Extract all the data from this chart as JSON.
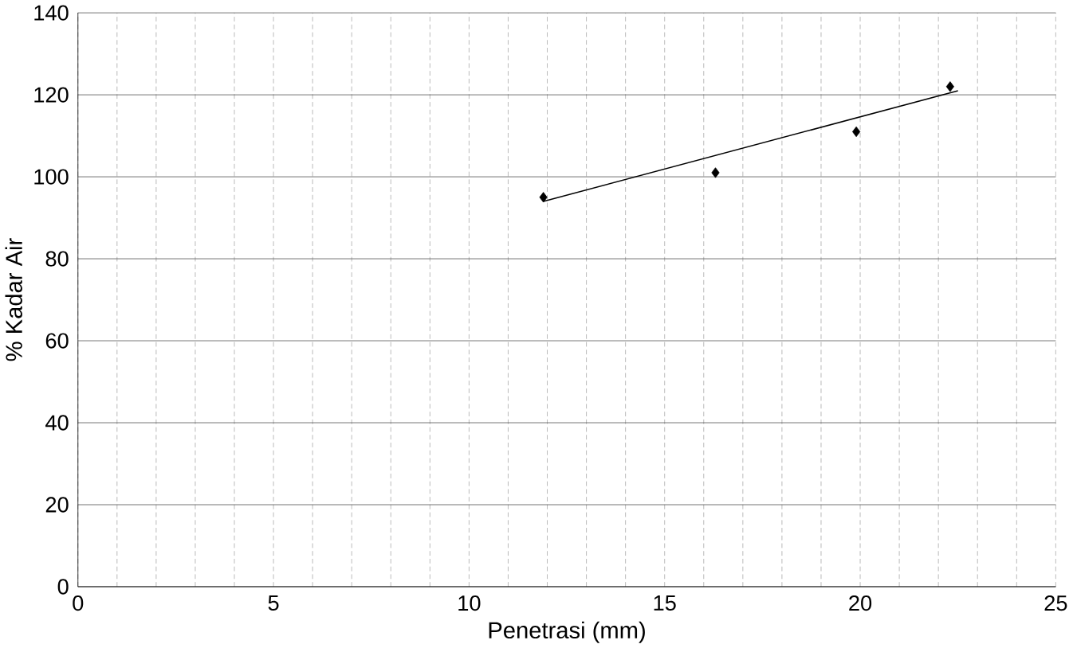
{
  "chart_data": {
    "type": "scatter",
    "xlabel": "Penetrasi (mm)",
    "ylabel": "% Kadar Air",
    "series": [
      {
        "color": "#000000",
        "marker": "diamond",
        "x": [
          11.9,
          16.3,
          19.9,
          22.3
        ],
        "values": [
          95,
          101,
          111,
          122
        ]
      },
      {
        "type": "line",
        "color": "#000000",
        "marker": "none",
        "x": [
          11.9,
          22.5
        ],
        "values": [
          94,
          121
        ]
      }
    ],
    "xlim": [
      0,
      25
    ],
    "ylim": [
      0,
      140
    ],
    "xticks": [
      0,
      {
        "value": 1,
        "label": null
      },
      {
        "value": 2,
        "label": null
      },
      {
        "value": 3,
        "label": null
      },
      {
        "value": 4,
        "label": null
      },
      5,
      {
        "value": 6,
        "label": null
      },
      {
        "value": 7,
        "label": null
      },
      {
        "value": 8,
        "label": null
      },
      {
        "value": 9,
        "label": null
      },
      10,
      {
        "value": 11,
        "label": null
      },
      {
        "value": 12,
        "label": null
      },
      {
        "value": 13,
        "label": null
      },
      {
        "value": 14,
        "label": null
      },
      15,
      {
        "value": 16,
        "label": null
      },
      {
        "value": 17,
        "label": null
      },
      {
        "value": 18,
        "label": null
      },
      {
        "value": 19,
        "label": null
      },
      20,
      {
        "value": 21,
        "label": null
      },
      {
        "value": 22,
        "label": null
      },
      {
        "value": 23,
        "label": null
      },
      {
        "value": 24,
        "label": null
      },
      25
    ],
    "yticks": [
      0,
      20,
      40,
      60,
      80,
      100,
      120,
      140
    ],
    "grid": true
  }
}
